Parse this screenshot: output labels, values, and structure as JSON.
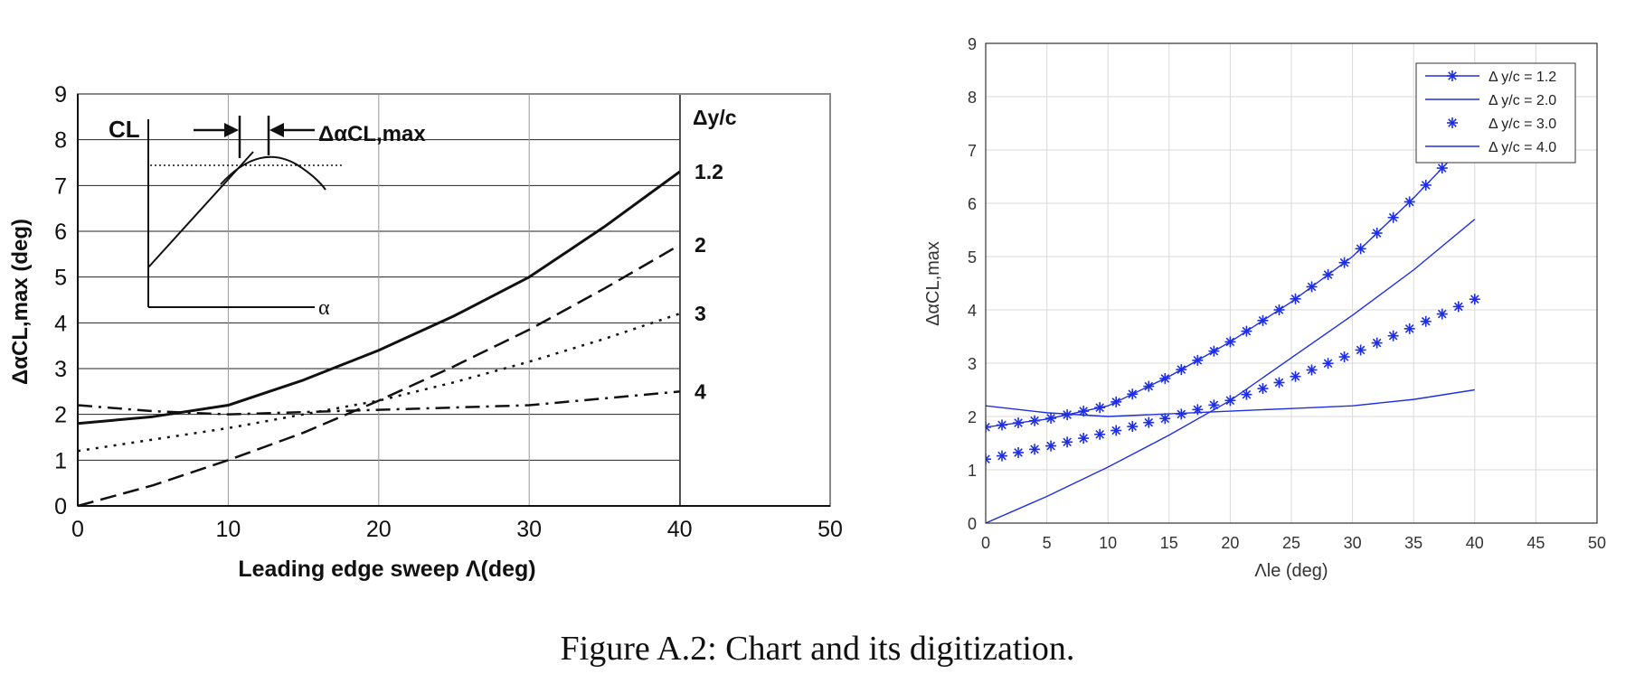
{
  "caption": "Figure A.2: Chart and its digitization.",
  "colors": {
    "original": "#111111",
    "digitized": "#1f2fe0",
    "grid_original": "#9a9a9a",
    "grid_digitized": "#d9d9d9"
  },
  "chart_data": [
    {
      "type": "line",
      "title": "",
      "xlabel": "Leading edge sweep Λ(deg)",
      "ylabel": "ΔαCL,max (deg)",
      "xlim": [
        0,
        50
      ],
      "ylim": [
        0,
        9
      ],
      "xticks": [
        "0",
        "10",
        "20",
        "30",
        "40",
        "50"
      ],
      "yticks": [
        "0",
        "1",
        "2",
        "3",
        "4",
        "5",
        "6",
        "7",
        "8",
        "9"
      ],
      "grid": true,
      "legend_title": "Δy/c",
      "series": [
        {
          "name": "1.2",
          "style": "solid",
          "x": [
            0,
            5,
            10,
            15,
            20,
            25,
            30,
            35,
            40
          ],
          "y": [
            1.8,
            1.95,
            2.2,
            2.75,
            3.4,
            4.15,
            5.0,
            6.1,
            7.3
          ]
        },
        {
          "name": "2",
          "style": "dashed",
          "x": [
            0,
            5,
            10,
            15,
            20,
            25,
            30,
            35,
            40
          ],
          "y": [
            0,
            0.45,
            1.0,
            1.6,
            2.3,
            3.05,
            3.85,
            4.75,
            5.7
          ]
        },
        {
          "name": "3",
          "style": "dotted",
          "x": [
            0,
            5,
            10,
            15,
            20,
            25,
            30,
            35,
            40
          ],
          "y": [
            1.2,
            1.45,
            1.7,
            2.0,
            2.3,
            2.7,
            3.15,
            3.65,
            4.2
          ]
        },
        {
          "name": "4",
          "style": "dashdot",
          "x": [
            0,
            5,
            10,
            15,
            20,
            25,
            30,
            35,
            40
          ],
          "y": [
            2.2,
            2.07,
            2.0,
            2.05,
            2.1,
            2.15,
            2.2,
            2.35,
            2.5
          ]
        }
      ],
      "inset": {
        "y_label": "CL",
        "x_label": "α",
        "annotation": "ΔαCL,max"
      }
    },
    {
      "type": "line",
      "title": "",
      "xlabel": "Λle (deg)",
      "ylabel": "ΔαCL,max",
      "xlim": [
        0,
        50
      ],
      "ylim": [
        0,
        9
      ],
      "xticks": [
        "0",
        "5",
        "10",
        "15",
        "20",
        "25",
        "30",
        "35",
        "40",
        "45",
        "50"
      ],
      "yticks": [
        "0",
        "1",
        "2",
        "3",
        "4",
        "5",
        "6",
        "7",
        "8",
        "9"
      ],
      "grid": true,
      "legend_placement": "top-right",
      "series": [
        {
          "name": "Δ y/c = 1.2",
          "style": "line-star",
          "x": [
            0,
            5,
            10,
            15,
            20,
            25,
            30,
            35,
            40
          ],
          "y": [
            1.8,
            1.95,
            2.2,
            2.75,
            3.4,
            4.15,
            5.0,
            6.1,
            7.3
          ]
        },
        {
          "name": "Δ y/c = 2.0",
          "style": "line",
          "x": [
            0,
            5,
            10,
            15,
            20,
            25,
            30,
            35,
            40
          ],
          "y": [
            0,
            0.5,
            1.05,
            1.65,
            2.3,
            3.1,
            3.9,
            4.75,
            5.7
          ]
        },
        {
          "name": "Δ y/c = 3.0",
          "style": "star",
          "x": [
            0,
            5,
            10,
            15,
            20,
            25,
            30,
            35,
            40
          ],
          "y": [
            1.2,
            1.43,
            1.7,
            1.98,
            2.3,
            2.72,
            3.18,
            3.68,
            4.2
          ]
        },
        {
          "name": "Δ y/c = 4.0",
          "style": "line",
          "x": [
            0,
            5,
            10,
            15,
            20,
            25,
            30,
            35,
            40
          ],
          "y": [
            2.2,
            2.07,
            2.0,
            2.05,
            2.1,
            2.15,
            2.2,
            2.32,
            2.5
          ]
        }
      ]
    }
  ]
}
